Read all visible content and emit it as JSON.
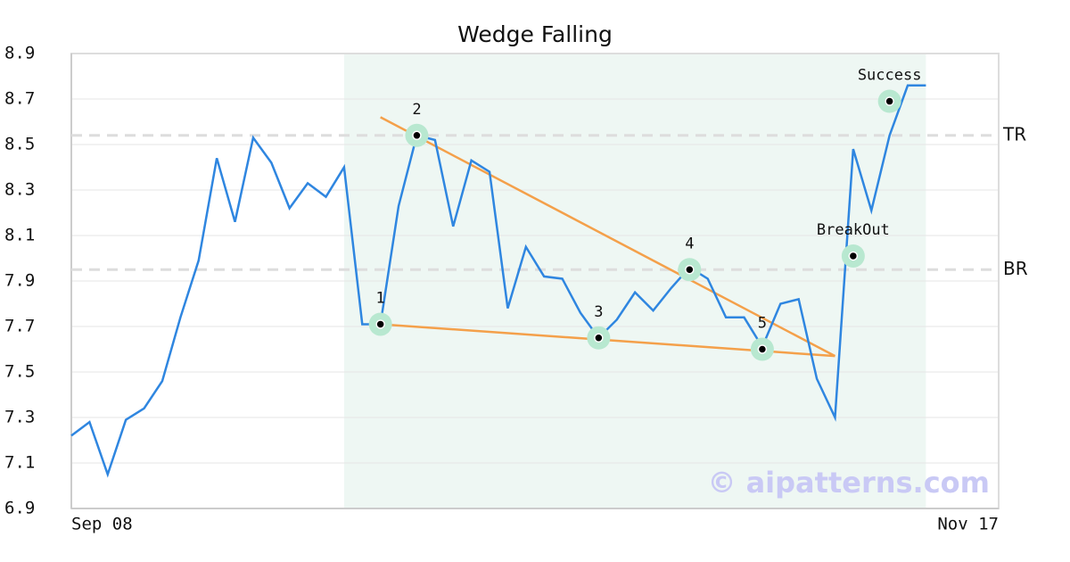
{
  "chart_data": {
    "type": "line",
    "title": "Wedge Falling",
    "watermark": "© aipatterns.com",
    "x": [
      0,
      1,
      2,
      3,
      4,
      5,
      6,
      7,
      8,
      9,
      10,
      11,
      12,
      13,
      14,
      15,
      16,
      17,
      18,
      19,
      20,
      21,
      22,
      23,
      24,
      25,
      26,
      27,
      28,
      29,
      30,
      31,
      32,
      33,
      34,
      35,
      36,
      37,
      38,
      39,
      40,
      41,
      42,
      43,
      44,
      45,
      46,
      47
    ],
    "series": [
      {
        "color": "#2f86e0",
        "values": [
          7.22,
          7.28,
          7.05,
          7.29,
          7.34,
          7.46,
          7.74,
          7.99,
          8.44,
          8.16,
          8.53,
          8.42,
          8.22,
          8.33,
          8.27,
          8.4,
          7.71,
          7.71,
          8.23,
          8.54,
          8.52,
          8.14,
          8.43,
          8.38,
          7.78,
          8.05,
          7.92,
          7.91,
          7.76,
          7.65,
          7.73,
          7.85,
          7.77,
          7.87,
          7.96,
          7.91,
          7.74,
          7.74,
          7.61,
          7.8,
          7.82,
          7.47,
          7.3,
          8.48,
          8.21,
          8.54,
          8.76,
          8.76
        ]
      }
    ],
    "xlim": [
      0,
      51
    ],
    "xticks": [
      {
        "value": 0,
        "label": "Sep 08"
      },
      {
        "value": 51,
        "label": "Nov 17"
      }
    ],
    "ylim": [
      6.9,
      8.9
    ],
    "yticks": [
      6.9,
      7.1,
      7.3,
      7.5,
      7.7,
      7.9,
      8.1,
      8.3,
      8.5,
      8.7,
      8.9
    ],
    "grid": true,
    "shaded_x": [
      15,
      47
    ],
    "shade_color": "#eef7f3",
    "trend_color": "#f4a04a",
    "trend_lines": [
      {
        "x": [
          17,
          42
        ],
        "y": [
          8.62,
          7.57
        ]
      },
      {
        "x": [
          17,
          42
        ],
        "y": [
          7.71,
          7.57
        ]
      }
    ],
    "levels": [
      {
        "label": "TR",
        "value": 8.54
      },
      {
        "label": "BR",
        "value": 7.95
      }
    ],
    "points": [
      {
        "label": "1",
        "x": 17,
        "y": 7.71
      },
      {
        "label": "2",
        "x": 19,
        "y": 8.54
      },
      {
        "label": "3",
        "x": 29,
        "y": 7.65
      },
      {
        "label": "4",
        "x": 34,
        "y": 7.95
      },
      {
        "label": "5",
        "x": 38,
        "y": 7.6
      },
      {
        "label": "BreakOut",
        "x": 43,
        "y": 8.01
      },
      {
        "label": "Success",
        "x": 45,
        "y": 8.69
      }
    ]
  }
}
